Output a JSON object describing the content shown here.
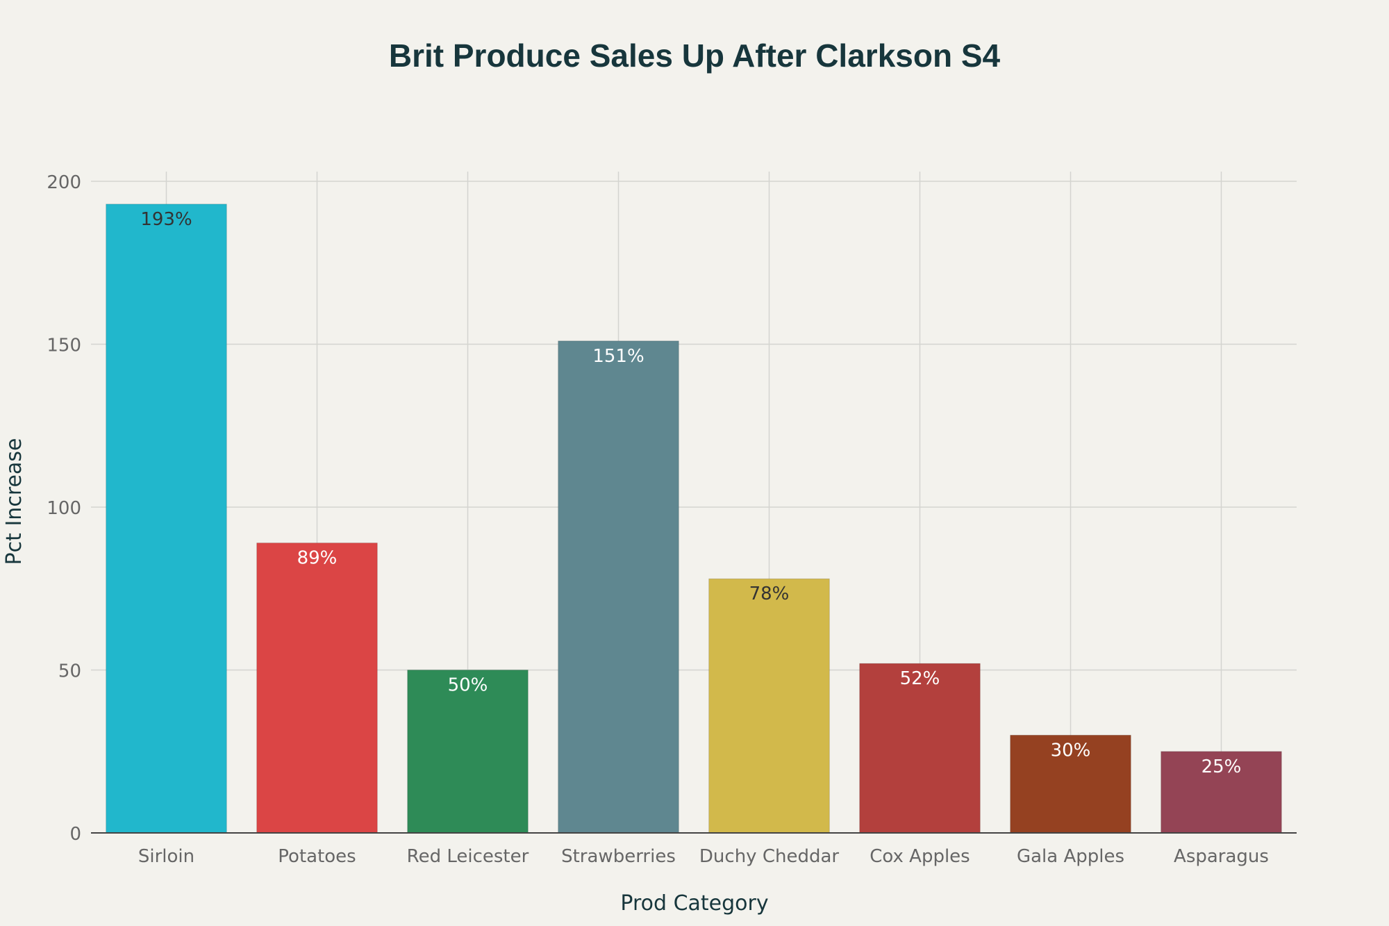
{
  "chart_data": {
    "type": "bar",
    "title": "Brit Produce Sales Up After Clarkson S4",
    "xlabel": "Prod Category",
    "ylabel": "Pct Increase",
    "categories": [
      "Sirloin",
      "Potatoes",
      "Red Leicester",
      "Strawberries",
      "Duchy Cheddar",
      "Cox Apples",
      "Gala Apples",
      "Asparagus"
    ],
    "values": [
      193,
      89,
      50,
      151,
      78,
      52,
      30,
      25
    ],
    "data_labels": [
      "193%",
      "89%",
      "50%",
      "151%",
      "78%",
      "52%",
      "30%",
      "25%"
    ],
    "colors": [
      "#21b7cc",
      "#db4545",
      "#2e8b57",
      "#5f8790",
      "#d2b94b",
      "#b3403d",
      "#954121",
      "#944455"
    ],
    "label_colors": [
      "#333333",
      "#ffffff",
      "#ffffff",
      "#ffffff",
      "#333333",
      "#ffffff",
      "#ffffff",
      "#ffffff"
    ],
    "ylim": [
      0,
      200
    ],
    "yticks": [
      0,
      50,
      100,
      150,
      200
    ],
    "grid": true,
    "legend": false
  }
}
